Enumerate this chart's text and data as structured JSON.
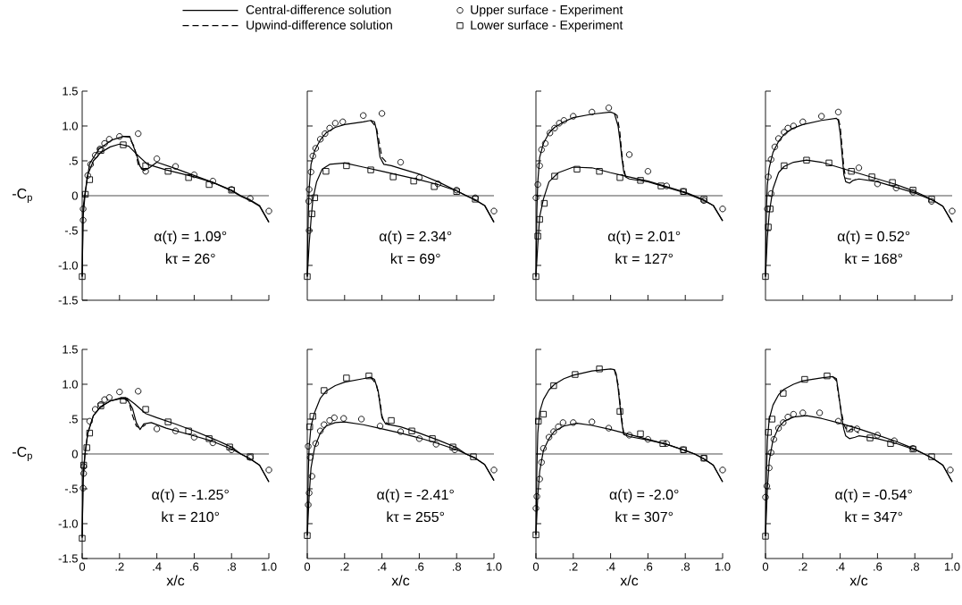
{
  "chart_data": [
    {
      "type": "line",
      "legend": "top",
      "tick_labels": "y",
      "ylabel": "-C$_{p}$",
      "xlim": [
        0,
        1.0
      ],
      "ylim": [
        -1.5,
        1.5
      ],
      "yticks": [
        1.5,
        {
          "value": 1.0,
          "label": "1.0"
        },
        {
          "value": 0.5,
          "label": ".5"
        },
        0,
        {
          "value": -0.5,
          "label": "-.5"
        },
        {
          "value": -1.0,
          "label": "-1.0"
        },
        -1.5
      ],
      "ref_lines": [
        {
          "axis": "y",
          "value": 0
        }
      ],
      "annotations": [
        "α(τ) = 1.09°",
        "kτ = 26°"
      ],
      "xticks": [
        {
          "value": 0.2,
          "label": null
        },
        {
          "value": 0.4,
          "label": null
        },
        {
          "value": 0.6,
          "label": null
        },
        {
          "value": 0.8,
          "label": null
        },
        {
          "value": 1.0,
          "label": null
        }
      ],
      "series": [
        {
          "name": "Central-difference solution",
          "type": "line",
          "color": "#000000",
          "line_style": "solid",
          "marker": "none",
          "x": [
            0,
            0.005,
            0.017,
            0.04,
            0.09,
            0.16,
            0.22,
            0.255,
            0.29,
            0.31,
            0.33,
            0.36,
            0.4,
            0.5,
            0.6,
            0.7,
            0.8,
            0.85,
            0.9,
            0.95,
            1.0
          ],
          "values": [
            -1.16,
            -0.17,
            0.08,
            0.46,
            0.67,
            0.8,
            0.85,
            0.85,
            0.6,
            0.42,
            0.36,
            0.4,
            0.48,
            0.39,
            0.29,
            0.19,
            0.08,
            0,
            -0.06,
            -0.14,
            -0.38
          ]
        },
        {
          "name": "Upwind-difference solution",
          "type": "line",
          "color": "#000000",
          "line_style": "dashed",
          "marker": "none",
          "x": [
            0.22,
            0.25,
            0.28,
            0.3,
            0.32,
            0.36
          ],
          "values": [
            0.85,
            0.84,
            0.7,
            0.45,
            0.38,
            0.4
          ]
        },
        {
          "name": "Upper surface - Experiment",
          "type": "scatter",
          "color": "#000000",
          "marker": "circle",
          "x": [
            0.005,
            0.005,
            0.03,
            0.045,
            0.07,
            0.095,
            0.12,
            0.145,
            0.2,
            0.3,
            0.34,
            0.4,
            0.5,
            0.6,
            0.7,
            0.8,
            0.9,
            1.0
          ],
          "values": [
            -0.35,
            -0.19,
            0.29,
            0.45,
            0.58,
            0.67,
            0.75,
            0.81,
            0.85,
            0.89,
            0.35,
            0.53,
            0.42,
            0.3,
            0.21,
            0.09,
            -0.04,
            -0.22
          ]
        },
        {
          "name": "Lower surface - Experiment",
          "type": "scatter",
          "color": "#000000",
          "marker": "square",
          "x": [
            0,
            0.017,
            0.04,
            0.1,
            0.22,
            0.34,
            0.46,
            0.57,
            0.68,
            0.8
          ],
          "values": [
            -1.16,
            0.02,
            0.23,
            0.65,
            0.73,
            0.43,
            0.35,
            0.26,
            0.16,
            0.08
          ]
        },
        {
          "type": "line",
          "color": "#000000",
          "line_style": "solid",
          "marker": "none",
          "x": [
            0,
            0.005,
            0.015,
            0.03,
            0.06,
            0.1,
            0.15,
            0.2,
            0.25,
            0.29,
            0.35,
            0.45,
            0.6,
            0.7,
            0.8,
            0.85,
            0.9,
            0.95,
            1.0
          ],
          "values": [
            -1.16,
            -0.3,
            0,
            0.3,
            0.5,
            0.62,
            0.7,
            0.74,
            0.71,
            0.6,
            0.45,
            0.37,
            0.27,
            0.19,
            0.07,
            -0.01,
            -0.07,
            -0.15,
            -0.38
          ]
        }
      ]
    },
    {
      "type": "line",
      "tick_labels": false,
      "xlim": [
        0,
        1.0
      ],
      "ylim": [
        -1.5,
        1.5
      ],
      "xticks": [
        {
          "value": 0.2,
          "label": null
        },
        {
          "value": 0.4,
          "label": null
        },
        {
          "value": 0.6,
          "label": null
        },
        {
          "value": 0.8,
          "label": null
        },
        {
          "value": 1.0,
          "label": null
        }
      ],
      "yticks": [
        {
          "value": 1.5,
          "label": null
        },
        {
          "value": 1.0,
          "label": null
        },
        {
          "value": 0.5,
          "label": null
        },
        {
          "value": 0,
          "label": null
        },
        {
          "value": -0.5,
          "label": null
        },
        {
          "value": -1.0,
          "label": null
        }
      ],
      "ref_lines": [
        {
          "axis": "y",
          "value": 0
        }
      ],
      "annotations": [
        "α(τ) = 2.34°",
        "kτ = 69°"
      ],
      "series": [
        {
          "type": "line",
          "color": "#000000",
          "line_style": "solid",
          "marker": "none",
          "x": [
            0,
            0.005,
            0.01,
            0.02,
            0.04,
            0.07,
            0.1,
            0.15,
            0.2,
            0.3,
            0.34,
            0.36,
            0.37,
            0.38,
            0.39,
            0.41,
            0.45,
            0.5,
            0.6,
            0.7,
            0.8,
            0.9,
            0.95,
            1.0
          ],
          "values": [
            -1.16,
            -0.3,
            0.1,
            0.45,
            0.65,
            0.8,
            0.9,
            0.98,
            1.02,
            1.06,
            1.08,
            1.06,
            0.95,
            0.75,
            0.55,
            0.45,
            0.43,
            0.39,
            0.31,
            0.2,
            0.07,
            -0.06,
            -0.14,
            -0.38
          ]
        },
        {
          "type": "line",
          "color": "#000000",
          "line_style": "dashed",
          "marker": "none",
          "x": [
            0.34,
            0.37,
            0.39,
            0.4,
            0.41,
            0.43
          ],
          "values": [
            1.08,
            0.98,
            0.7,
            0.55,
            0.52,
            0.46
          ]
        },
        {
          "type": "scatter",
          "color": "#000000",
          "marker": "circle",
          "x": [
            0.008,
            0.01,
            0.01,
            0.02,
            0.03,
            0.045,
            0.07,
            0.095,
            0.12,
            0.15,
            0.19,
            0.3,
            0.4,
            0.5,
            0.6,
            0.7,
            0.8,
            0.9,
            1.0
          ],
          "values": [
            -0.08,
            -0.5,
            0.09,
            0.34,
            0.57,
            0.68,
            0.81,
            0.89,
            0.97,
            1.04,
            1.06,
            1.15,
            1.18,
            0.48,
            0.26,
            0.17,
            0.08,
            -0.03,
            -0.22
          ]
        },
        {
          "type": "scatter",
          "color": "#000000",
          "marker": "square",
          "x": [
            0,
            0.025,
            0.04,
            0.1,
            0.21,
            0.34,
            0.46,
            0.57,
            0.68,
            0.8,
            0.9
          ],
          "values": [
            -1.16,
            -0.26,
            -0.03,
            0.35,
            0.43,
            0.37,
            0.27,
            0.21,
            0.13,
            0.06,
            -0.05
          ]
        },
        {
          "type": "line",
          "color": "#000000",
          "line_style": "solid",
          "marker": "none",
          "x": [
            0,
            0.01,
            0.02,
            0.03,
            0.05,
            0.08,
            0.12,
            0.2,
            0.3,
            0.4,
            0.5,
            0.6,
            0.7,
            0.8,
            0.85,
            0.9,
            0.95,
            1.0
          ],
          "values": [
            -1.16,
            -0.7,
            -0.35,
            -0.05,
            0.2,
            0.38,
            0.45,
            0.47,
            0.41,
            0.35,
            0.29,
            0.23,
            0.16,
            0.07,
            0,
            -0.06,
            -0.14,
            -0.38
          ]
        }
      ]
    },
    {
      "type": "line",
      "tick_labels": false,
      "xlim": [
        0,
        1.0
      ],
      "ylim": [
        -1.5,
        1.5
      ],
      "xticks": [
        {
          "value": 0.2,
          "label": null
        },
        {
          "value": 0.4,
          "label": null
        },
        {
          "value": 0.6,
          "label": null
        },
        {
          "value": 0.8,
          "label": null
        },
        {
          "value": 1.0,
          "label": null
        }
      ],
      "yticks": [
        {
          "value": 1.5,
          "label": null
        },
        {
          "value": 1.0,
          "label": null
        },
        {
          "value": 0.5,
          "label": null
        },
        {
          "value": 0,
          "label": null
        },
        {
          "value": -0.5,
          "label": null
        },
        {
          "value": -1.0,
          "label": null
        }
      ],
      "ref_lines": [
        {
          "axis": "y",
          "value": 0
        }
      ],
      "annotations": [
        "α(τ) = 2.01°",
        "kτ = 127°"
      ],
      "series": [
        {
          "type": "line",
          "color": "#000000",
          "line_style": "solid",
          "marker": "none",
          "x": [
            0,
            0.005,
            0.01,
            0.02,
            0.04,
            0.07,
            0.1,
            0.15,
            0.2,
            0.3,
            0.4,
            0.42,
            0.44,
            0.45,
            0.46,
            0.47,
            0.48,
            0.5,
            0.6,
            0.7,
            0.8,
            0.9,
            0.95,
            1.0
          ],
          "values": [
            -1.16,
            -0.2,
            0.2,
            0.55,
            0.75,
            0.9,
            0.98,
            1.06,
            1.12,
            1.17,
            1.2,
            1.18,
            1.0,
            0.8,
            0.55,
            0.35,
            0.27,
            0.24,
            0.2,
            0.12,
            0.04,
            -0.07,
            -0.14,
            -0.36
          ]
        },
        {
          "type": "line",
          "color": "#000000",
          "line_style": "dashed",
          "marker": "none",
          "x": [
            0.42,
            0.435,
            0.45,
            0.46,
            0.47,
            0.48
          ],
          "values": [
            1.18,
            1.15,
            0.9,
            0.6,
            0.4,
            0.28
          ]
        },
        {
          "type": "scatter",
          "color": "#000000",
          "marker": "circle",
          "x": [
            0,
            0.01,
            0.02,
            0.03,
            0.05,
            0.075,
            0.1,
            0.125,
            0.15,
            0.2,
            0.3,
            0.39,
            0.5,
            0.6,
            0.7,
            0.79,
            0.9,
            1.0
          ],
          "values": [
            -0.03,
            0.16,
            0.43,
            0.66,
            0.75,
            0.9,
            0.97,
            1.04,
            1.08,
            1.14,
            1.2,
            1.26,
            0.59,
            0.35,
            0.14,
            0.06,
            -0.07,
            -0.19
          ]
        },
        {
          "type": "scatter",
          "color": "#000000",
          "marker": "square",
          "x": [
            0,
            0.01,
            0.02,
            0.045,
            0.1,
            0.22,
            0.34,
            0.45,
            0.56,
            0.67,
            0.79,
            0.9
          ],
          "values": [
            -1.16,
            -0.58,
            -0.34,
            -0.11,
            0.28,
            0.38,
            0.35,
            0.26,
            0.22,
            0.14,
            0.06,
            -0.05
          ]
        },
        {
          "type": "line",
          "color": "#000000",
          "line_style": "solid",
          "marker": "none",
          "x": [
            0,
            0.01,
            0.02,
            0.04,
            0.07,
            0.12,
            0.2,
            0.3,
            0.4,
            0.48,
            0.6,
            0.7,
            0.8,
            0.9,
            0.95,
            1.0
          ],
          "values": [
            -1.16,
            -0.7,
            -0.3,
            -0.05,
            0.2,
            0.33,
            0.41,
            0.4,
            0.33,
            0.28,
            0.21,
            0.13,
            0.05,
            -0.06,
            -0.14,
            -0.36
          ]
        }
      ]
    },
    {
      "type": "line",
      "tick_labels": false,
      "xlim": [
        0,
        1.0
      ],
      "ylim": [
        -1.5,
        1.5
      ],
      "xticks": [
        {
          "value": 0.2,
          "label": null
        },
        {
          "value": 0.4,
          "label": null
        },
        {
          "value": 0.6,
          "label": null
        },
        {
          "value": 0.8,
          "label": null
        },
        {
          "value": 1.0,
          "label": null
        }
      ],
      "yticks": [
        {
          "value": 1.5,
          "label": null
        },
        {
          "value": 1.0,
          "label": null
        },
        {
          "value": 0.5,
          "label": null
        },
        {
          "value": 0,
          "label": null
        },
        {
          "value": -0.5,
          "label": null
        },
        {
          "value": -1.0,
          "label": null
        }
      ],
      "ref_lines": [
        {
          "axis": "y",
          "value": 0
        }
      ],
      "annotations": [
        "α(τ) = 0.52°",
        "kτ = 168°"
      ],
      "series": [
        {
          "type": "line",
          "color": "#000000",
          "line_style": "solid",
          "marker": "none",
          "x": [
            0,
            0.005,
            0.01,
            0.02,
            0.04,
            0.07,
            0.1,
            0.15,
            0.2,
            0.3,
            0.38,
            0.39,
            0.4,
            0.41,
            0.42,
            0.43,
            0.45,
            0.47,
            0.5,
            0.6,
            0.7,
            0.8,
            0.9,
            0.95,
            1.0
          ],
          "values": [
            -1.16,
            -0.2,
            0.15,
            0.4,
            0.62,
            0.78,
            0.88,
            0.97,
            1.02,
            1.08,
            1.11,
            1.08,
            0.9,
            0.6,
            0.3,
            0.2,
            0.18,
            0.22,
            0.24,
            0.2,
            0.12,
            0.04,
            -0.07,
            -0.15,
            -0.38
          ]
        },
        {
          "type": "line",
          "color": "#000000",
          "line_style": "dashed",
          "marker": "none",
          "x": [
            0.39,
            0.4,
            0.41,
            0.42,
            0.43,
            0.45,
            0.48
          ],
          "values": [
            1.1,
            1.0,
            0.7,
            0.4,
            0.25,
            0.24,
            0.24
          ]
        },
        {
          "type": "scatter",
          "color": "#000000",
          "marker": "circle",
          "x": [
            0.01,
            0.015,
            0.03,
            0.03,
            0.05,
            0.07,
            0.1,
            0.12,
            0.15,
            0.2,
            0.3,
            0.39,
            0.5,
            0.6,
            0.7,
            0.79,
            0.89,
            1.0
          ],
          "values": [
            -0.19,
            0.27,
            0.03,
            0.52,
            0.7,
            0.82,
            0.91,
            0.97,
            1.0,
            1.06,
            1.14,
            1.2,
            0.4,
            0.17,
            0.11,
            0.05,
            -0.08,
            -0.22
          ]
        },
        {
          "type": "scatter",
          "color": "#000000",
          "marker": "square",
          "x": [
            0,
            0.015,
            0.025,
            0.1,
            0.22,
            0.34,
            0.46,
            0.57,
            0.68,
            0.79,
            0.89
          ],
          "values": [
            -1.16,
            -0.45,
            -0.19,
            0.43,
            0.51,
            0.47,
            0.35,
            0.27,
            0.19,
            0.08,
            -0.05
          ]
        },
        {
          "type": "line",
          "color": "#000000",
          "line_style": "solid",
          "marker": "none",
          "x": [
            0,
            0.01,
            0.02,
            0.04,
            0.07,
            0.1,
            0.15,
            0.22,
            0.3,
            0.4,
            0.5,
            0.6,
            0.7,
            0.8,
            0.85,
            0.9,
            0.95,
            1.0
          ],
          "values": [
            -1.16,
            -0.6,
            -0.25,
            0.1,
            0.33,
            0.42,
            0.48,
            0.51,
            0.48,
            0.4,
            0.32,
            0.24,
            0.16,
            0.06,
            0,
            -0.07,
            -0.15,
            -0.38
          ]
        }
      ]
    },
    {
      "type": "line",
      "xlabel": "x/c",
      "ylabel": "-C$_{p}$",
      "xlim": [
        0,
        1.0
      ],
      "ylim": [
        -1.5,
        1.5
      ],
      "xticks": [
        0,
        {
          "value": 0.2,
          "label": ".2"
        },
        {
          "value": 0.4,
          "label": ".4"
        },
        {
          "value": 0.6,
          "label": ".6"
        },
        {
          "value": 0.8,
          "label": ".8"
        },
        {
          "value": 1.0,
          "label": "1.0"
        }
      ],
      "yticks": [
        1.5,
        {
          "value": 1.0,
          "label": "1.0"
        },
        {
          "value": 0.5,
          "label": ".5"
        },
        0,
        {
          "value": -0.5,
          "label": "-.5"
        },
        {
          "value": -1.0,
          "label": "-1.0"
        },
        -1.5
      ],
      "ref_lines": [
        {
          "axis": "y",
          "value": 0
        }
      ],
      "annotations": [
        "α(τ) = -1.25°",
        "kτ = 210°"
      ],
      "series": [
        {
          "type": "line",
          "color": "#000000",
          "line_style": "solid",
          "marker": "none",
          "x": [
            0,
            0.005,
            0.015,
            0.03,
            0.06,
            0.1,
            0.15,
            0.2,
            0.24,
            0.27,
            0.29,
            0.31,
            0.33,
            0.37,
            0.45,
            0.6,
            0.7,
            0.8,
            0.85,
            0.9,
            0.95,
            1.0
          ],
          "values": [
            -1.2,
            -0.4,
            0,
            0.3,
            0.55,
            0.68,
            0.76,
            0.8,
            0.79,
            0.65,
            0.45,
            0.35,
            0.43,
            0.45,
            0.37,
            0.26,
            0.18,
            0.07,
            0,
            -0.07,
            -0.16,
            -0.4
          ]
        },
        {
          "type": "line",
          "color": "#000000",
          "line_style": "dashed",
          "marker": "none",
          "x": [
            0.22,
            0.25,
            0.27,
            0.29,
            0.31,
            0.34
          ],
          "values": [
            0.8,
            0.75,
            0.55,
            0.4,
            0.37,
            0.42
          ]
        },
        {
          "type": "scatter",
          "color": "#000000",
          "marker": "circle",
          "x": [
            0.005,
            0.008,
            0.008,
            0.04,
            0.07,
            0.1,
            0.12,
            0.145,
            0.2,
            0.3,
            0.4,
            0.5,
            0.6,
            0.7,
            0.8,
            0.9,
            1.0
          ],
          "values": [
            -0.49,
            -0.28,
            -0.18,
            0.47,
            0.64,
            0.71,
            0.78,
            0.81,
            0.89,
            0.9,
            0.36,
            0.33,
            0.24,
            0.16,
            0.06,
            -0.05,
            -0.23
          ]
        },
        {
          "type": "scatter",
          "color": "#000000",
          "marker": "square",
          "x": [
            0,
            0.008,
            0.025,
            0.04,
            0.1,
            0.22,
            0.34,
            0.46,
            0.57,
            0.68,
            0.79,
            0.9
          ],
          "values": [
            -1.21,
            -0.16,
            0.09,
            0.3,
            0.69,
            0.77,
            0.64,
            0.46,
            0.33,
            0.22,
            0.1,
            -0.04
          ]
        },
        {
          "type": "line",
          "color": "#000000",
          "line_style": "solid",
          "marker": "none",
          "x": [
            0,
            0.005,
            0.015,
            0.03,
            0.06,
            0.1,
            0.15,
            0.2,
            0.24,
            0.28,
            0.34,
            0.4,
            0.5,
            0.6,
            0.7,
            0.8,
            0.85,
            0.9,
            0.95,
            1.0
          ],
          "values": [
            -1.2,
            -0.3,
            0,
            0.3,
            0.55,
            0.68,
            0.76,
            0.79,
            0.8,
            0.72,
            0.58,
            0.52,
            0.43,
            0.33,
            0.22,
            0.1,
            0,
            -0.07,
            -0.16,
            -0.4
          ]
        }
      ]
    },
    {
      "type": "line",
      "tick_labels": "x",
      "xlabel": "x/c",
      "xlim": [
        0,
        1.0
      ],
      "ylim": [
        -1.5,
        1.5
      ],
      "xticks": [
        0,
        {
          "value": 0.2,
          "label": ".2"
        },
        {
          "value": 0.4,
          "label": ".4"
        },
        {
          "value": 0.6,
          "label": ".6"
        },
        {
          "value": 0.8,
          "label": ".8"
        },
        {
          "value": 1.0,
          "label": "1.0"
        }
      ],
      "yticks": [
        {
          "value": 1.5,
          "label": null
        },
        {
          "value": 1.0,
          "label": null
        },
        {
          "value": 0.5,
          "label": null
        },
        {
          "value": 0,
          "label": null
        },
        {
          "value": -0.5,
          "label": null
        },
        {
          "value": -1.0,
          "label": null
        }
      ],
      "ref_lines": [
        {
          "axis": "y",
          "value": 0
        }
      ],
      "annotations": [
        "α(τ) = -2.41°",
        "kτ = 255°"
      ],
      "series": [
        {
          "type": "line",
          "color": "#000000",
          "line_style": "solid",
          "marker": "none",
          "x": [
            0,
            0.005,
            0.01,
            0.02,
            0.04,
            0.07,
            0.1,
            0.15,
            0.2,
            0.3,
            0.34,
            0.36,
            0.38,
            0.39,
            0.4,
            0.42,
            0.5,
            0.6,
            0.7,
            0.8,
            0.85,
            0.9,
            0.95,
            1.0
          ],
          "values": [
            -1.17,
            -0.3,
            0.1,
            0.4,
            0.6,
            0.8,
            0.9,
            0.98,
            1.03,
            1.08,
            1.1,
            1.07,
            0.9,
            0.7,
            0.52,
            0.43,
            0.39,
            0.3,
            0.2,
            0.09,
            0,
            -0.06,
            -0.15,
            -0.38
          ]
        },
        {
          "type": "line",
          "color": "#000000",
          "line_style": "dashed",
          "marker": "none",
          "x": [
            0.34,
            0.37,
            0.39,
            0.4,
            0.41,
            0.44
          ],
          "values": [
            1.1,
            1.0,
            0.75,
            0.55,
            0.47,
            0.42
          ]
        },
        {
          "type": "scatter",
          "color": "#000000",
          "marker": "circle",
          "x": [
            0.005,
            0.005,
            0.01,
            0.016,
            0.025,
            0.045,
            0.07,
            0.09,
            0.12,
            0.145,
            0.195,
            0.29,
            0.39,
            0.5,
            0.6,
            0.69,
            0.79,
            1.0
          ],
          "values": [
            0.11,
            -0.73,
            -0.56,
            -0.05,
            -0.32,
            0.15,
            0.33,
            0.42,
            0.48,
            0.52,
            0.51,
            0.5,
            0.4,
            0.32,
            0.22,
            0.14,
            0.06,
            -0.23
          ]
        },
        {
          "type": "scatter",
          "color": "#000000",
          "marker": "square",
          "x": [
            0,
            0.013,
            0.03,
            0.09,
            0.21,
            0.33,
            0.45,
            0.56,
            0.67,
            0.78,
            0.89
          ],
          "values": [
            -1.17,
            0.39,
            0.54,
            0.91,
            1.09,
            1.12,
            0.48,
            0.33,
            0.22,
            0.1,
            -0.04
          ]
        },
        {
          "type": "line",
          "color": "#000000",
          "line_style": "solid",
          "marker": "none",
          "x": [
            0,
            0.01,
            0.02,
            0.04,
            0.07,
            0.1,
            0.15,
            0.2,
            0.3,
            0.4,
            0.5,
            0.6,
            0.7,
            0.8,
            0.85,
            0.9,
            0.95,
            1.0
          ],
          "values": [
            -1.17,
            -0.6,
            -0.2,
            0.1,
            0.3,
            0.4,
            0.45,
            0.46,
            0.42,
            0.36,
            0.3,
            0.23,
            0.15,
            0.06,
            0,
            -0.06,
            -0.15,
            -0.38
          ]
        }
      ]
    },
    {
      "type": "line",
      "tick_labels": "x",
      "xlabel": "x/c",
      "xlim": [
        0,
        1.0
      ],
      "ylim": [
        -1.5,
        1.5
      ],
      "xticks": [
        0,
        {
          "value": 0.2,
          "label": ".2"
        },
        {
          "value": 0.4,
          "label": ".4"
        },
        {
          "value": 0.6,
          "label": ".6"
        },
        {
          "value": 0.8,
          "label": ".8"
        },
        {
          "value": 1.0,
          "label": "1.0"
        }
      ],
      "yticks": [
        {
          "value": 1.5,
          "label": null
        },
        {
          "value": 1.0,
          "label": null
        },
        {
          "value": 0.5,
          "label": null
        },
        {
          "value": 0,
          "label": null
        },
        {
          "value": -0.5,
          "label": null
        },
        {
          "value": -1.0,
          "label": null
        }
      ],
      "ref_lines": [
        {
          "axis": "y",
          "value": 0
        }
      ],
      "annotations": [
        "α(τ) = -2.0°",
        "kτ = 307°"
      ],
      "series": [
        {
          "type": "line",
          "color": "#000000",
          "line_style": "solid",
          "marker": "none",
          "x": [
            0,
            0.005,
            0.01,
            0.02,
            0.04,
            0.07,
            0.1,
            0.15,
            0.2,
            0.3,
            0.4,
            0.42,
            0.43,
            0.44,
            0.45,
            0.46,
            0.47,
            0.5,
            0.6,
            0.7,
            0.8,
            0.85,
            0.9,
            0.95,
            1.0
          ],
          "values": [
            -1.16,
            -0.2,
            0.3,
            0.6,
            0.78,
            0.92,
            1.0,
            1.08,
            1.13,
            1.19,
            1.22,
            1.21,
            1.15,
            0.95,
            0.7,
            0.45,
            0.28,
            0.25,
            0.2,
            0.14,
            0.05,
            0,
            -0.07,
            -0.16,
            -0.4
          ]
        },
        {
          "type": "line",
          "color": "#000000",
          "line_style": "dashed",
          "marker": "none",
          "x": [
            0.42,
            0.44,
            0.45,
            0.46,
            0.47,
            0.49
          ],
          "values": [
            1.21,
            1.0,
            0.75,
            0.5,
            0.3,
            0.26
          ]
        },
        {
          "type": "scatter",
          "color": "#000000",
          "marker": "circle",
          "x": [
            0,
            0.005,
            0.02,
            0.03,
            0.04,
            0.07,
            0.095,
            0.12,
            0.145,
            0.2,
            0.3,
            0.39,
            0.5,
            0.6,
            0.7,
            0.79,
            0.9,
            1.0
          ],
          "values": [
            -0.78,
            -0.61,
            -0.36,
            -0.12,
            0.08,
            0.24,
            0.32,
            0.39,
            0.45,
            0.45,
            0.46,
            0.37,
            0.27,
            0.21,
            0.15,
            0.06,
            -0.06,
            -0.23
          ]
        },
        {
          "type": "scatter",
          "color": "#000000",
          "marker": "square",
          "x": [
            0,
            0.013,
            0.04,
            0.095,
            0.21,
            0.34,
            0.45,
            0.56,
            0.68,
            0.79,
            0.9
          ],
          "values": [
            -1.16,
            0.47,
            0.57,
            0.98,
            1.14,
            1.22,
            0.61,
            0.29,
            0.15,
            0.06,
            -0.06
          ]
        },
        {
          "type": "line",
          "color": "#000000",
          "line_style": "solid",
          "marker": "none",
          "x": [
            0,
            0.01,
            0.02,
            0.04,
            0.07,
            0.1,
            0.15,
            0.22,
            0.3,
            0.4,
            0.5,
            0.6,
            0.7,
            0.8,
            0.85,
            0.9,
            0.95,
            1.0
          ],
          "values": [
            -1.16,
            -0.6,
            -0.25,
            0.05,
            0.22,
            0.33,
            0.4,
            0.44,
            0.41,
            0.35,
            0.28,
            0.21,
            0.14,
            0.05,
            0,
            -0.07,
            -0.16,
            -0.4
          ]
        }
      ]
    },
    {
      "type": "line",
      "tick_labels": "x",
      "xlabel": "x/c",
      "xlim": [
        0,
        1.0
      ],
      "ylim": [
        -1.5,
        1.5
      ],
      "xticks": [
        0,
        {
          "value": 0.2,
          "label": ".2"
        },
        {
          "value": 0.4,
          "label": ".4"
        },
        {
          "value": 0.6,
          "label": ".6"
        },
        {
          "value": 0.8,
          "label": ".8"
        },
        {
          "value": 1.0,
          "label": "1.0"
        }
      ],
      "yticks": [
        {
          "value": 1.5,
          "label": null
        },
        {
          "value": 1.0,
          "label": null
        },
        {
          "value": 0.5,
          "label": null
        },
        {
          "value": 0,
          "label": null
        },
        {
          "value": -0.5,
          "label": null
        },
        {
          "value": -1.0,
          "label": null
        }
      ],
      "ref_lines": [
        {
          "axis": "y",
          "value": 0
        }
      ],
      "annotations": [
        "α(τ) = -0.54°",
        "kτ = 347°"
      ],
      "series": [
        {
          "type": "line",
          "color": "#000000",
          "line_style": "solid",
          "marker": "none",
          "x": [
            0,
            0.005,
            0.01,
            0.02,
            0.04,
            0.07,
            0.1,
            0.15,
            0.2,
            0.3,
            0.36,
            0.38,
            0.39,
            0.4,
            0.41,
            0.42,
            0.43,
            0.45,
            0.48,
            0.5,
            0.6,
            0.7,
            0.8,
            0.85,
            0.9,
            0.95,
            1.0
          ],
          "values": [
            -1.18,
            -0.3,
            0.2,
            0.5,
            0.7,
            0.85,
            0.93,
            1.0,
            1.05,
            1.09,
            1.11,
            1.08,
            0.9,
            0.7,
            0.5,
            0.35,
            0.26,
            0.22,
            0.24,
            0.26,
            0.22,
            0.15,
            0.06,
            0,
            -0.07,
            -0.16,
            -0.4
          ]
        },
        {
          "type": "line",
          "color": "#000000",
          "line_style": "dashed",
          "marker": "none",
          "x": [
            0.36,
            0.38,
            0.4,
            0.42,
            0.44,
            0.46,
            0.5
          ],
          "values": [
            1.11,
            1.05,
            0.7,
            0.42,
            0.32,
            0.36,
            0.3
          ]
        },
        {
          "type": "scatter",
          "color": "#000000",
          "marker": "circle",
          "x": [
            0,
            0.007,
            0.02,
            0.03,
            0.045,
            0.07,
            0.095,
            0.12,
            0.15,
            0.2,
            0.29,
            0.39,
            0.49,
            0.6,
            0.69,
            0.79,
            0.99
          ],
          "values": [
            -0.62,
            -0.46,
            -0.2,
            0.02,
            0.21,
            0.37,
            0.45,
            0.53,
            0.57,
            0.59,
            0.59,
            0.47,
            0.36,
            0.27,
            0.19,
            0.08,
            -0.23
          ]
        },
        {
          "type": "scatter",
          "color": "#000000",
          "marker": "square",
          "x": [
            0,
            0.016,
            0.035,
            0.095,
            0.21,
            0.33,
            0.45,
            0.56,
            0.67,
            0.79,
            0.89
          ],
          "values": [
            -1.18,
            0.31,
            0.5,
            0.87,
            1.07,
            1.12,
            0.36,
            0.23,
            0.15,
            0.07,
            -0.04
          ]
        },
        {
          "type": "line",
          "color": "#000000",
          "line_style": "solid",
          "marker": "none",
          "x": [
            0,
            0.01,
            0.02,
            0.04,
            0.07,
            0.1,
            0.15,
            0.22,
            0.3,
            0.4,
            0.5,
            0.6,
            0.7,
            0.8,
            0.85,
            0.9,
            0.95,
            1.0
          ],
          "values": [
            -1.18,
            -0.5,
            -0.1,
            0.2,
            0.38,
            0.47,
            0.53,
            0.55,
            0.51,
            0.44,
            0.36,
            0.27,
            0.18,
            0.07,
            0,
            -0.07,
            -0.16,
            -0.4
          ]
        }
      ]
    }
  ]
}
